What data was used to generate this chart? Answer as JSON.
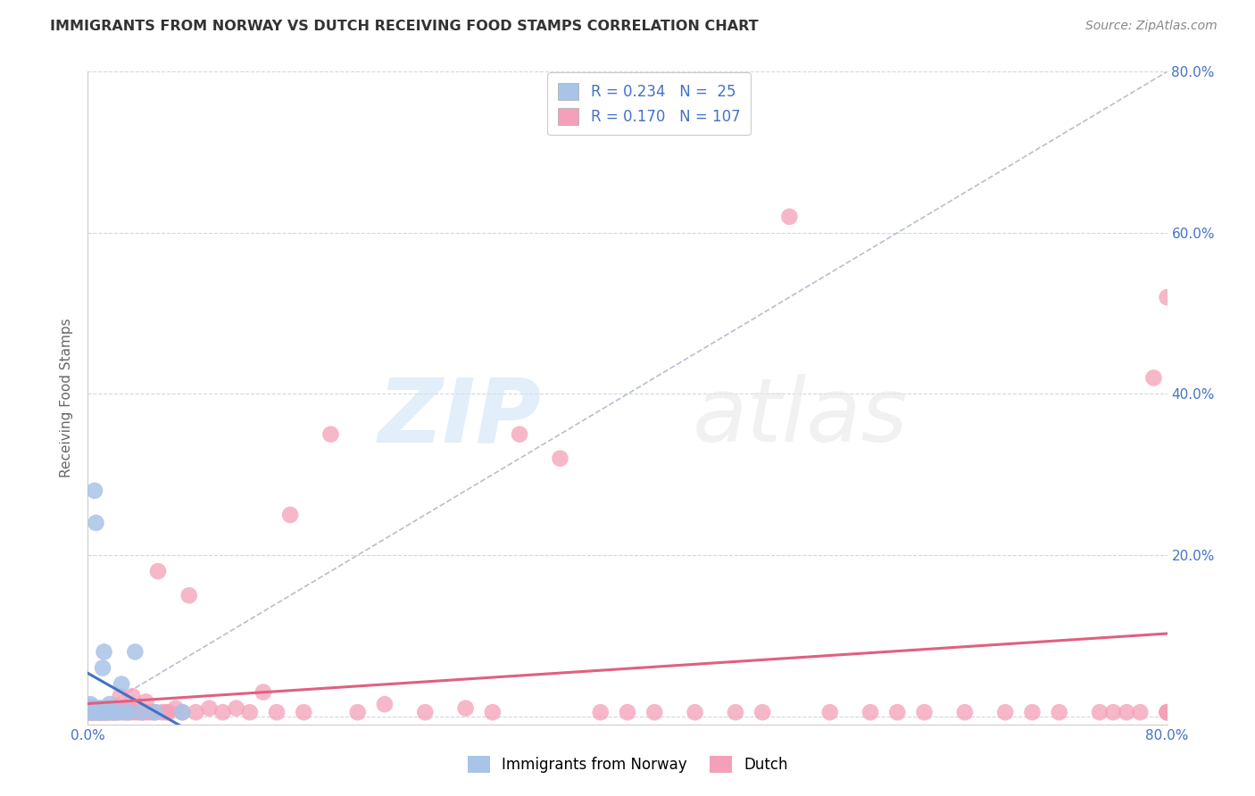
{
  "title": "IMMIGRANTS FROM NORWAY VS DUTCH RECEIVING FOOD STAMPS CORRELATION CHART",
  "source": "Source: ZipAtlas.com",
  "ylabel": "Receiving Food Stamps",
  "xlim": [
    0.0,
    0.8
  ],
  "ylim": [
    -0.01,
    0.8
  ],
  "xticks": [
    0.0,
    0.2,
    0.4,
    0.6,
    0.8
  ],
  "yticks": [
    0.0,
    0.2,
    0.4,
    0.6,
    0.8
  ],
  "xticklabels": [
    "0.0%",
    "",
    "",
    "",
    "80.0%"
  ],
  "yticklabels_right": [
    "20.0%",
    "40.0%",
    "60.0%",
    "80.0%"
  ],
  "norway_R": 0.234,
  "norway_N": 25,
  "dutch_R": 0.17,
  "dutch_N": 107,
  "norway_color": "#a8c4e8",
  "dutch_color": "#f4a0b8",
  "norway_trend_color": "#4472c4",
  "dutch_trend_color": "#e06080",
  "diagonal_color": "#b0b8c8",
  "background_color": "#ffffff",
  "grid_color": "#d0d8e0",
  "norway_x": [
    0.001,
    0.002,
    0.003,
    0.004,
    0.005,
    0.006,
    0.007,
    0.008,
    0.009,
    0.01,
    0.011,
    0.012,
    0.013,
    0.015,
    0.016,
    0.018,
    0.02,
    0.022,
    0.025,
    0.028,
    0.03,
    0.035,
    0.04,
    0.05,
    0.07
  ],
  "norway_y": [
    0.005,
    0.015,
    0.005,
    0.005,
    0.28,
    0.24,
    0.005,
    0.01,
    0.005,
    0.005,
    0.06,
    0.08,
    0.005,
    0.005,
    0.015,
    0.005,
    0.005,
    0.005,
    0.04,
    0.005,
    0.005,
    0.08,
    0.005,
    0.005,
    0.005
  ],
  "dutch_x": [
    0.0,
    0.0,
    0.001,
    0.001,
    0.002,
    0.002,
    0.003,
    0.003,
    0.004,
    0.004,
    0.005,
    0.005,
    0.006,
    0.006,
    0.007,
    0.007,
    0.008,
    0.008,
    0.009,
    0.009,
    0.01,
    0.01,
    0.011,
    0.011,
    0.012,
    0.012,
    0.013,
    0.013,
    0.014,
    0.015,
    0.015,
    0.016,
    0.017,
    0.018,
    0.018,
    0.019,
    0.02,
    0.02,
    0.021,
    0.022,
    0.023,
    0.024,
    0.025,
    0.026,
    0.027,
    0.028,
    0.03,
    0.03,
    0.032,
    0.033,
    0.035,
    0.036,
    0.038,
    0.04,
    0.042,
    0.043,
    0.045,
    0.048,
    0.05,
    0.052,
    0.055,
    0.058,
    0.06,
    0.065,
    0.07,
    0.075,
    0.08,
    0.09,
    0.1,
    0.11,
    0.12,
    0.13,
    0.14,
    0.15,
    0.16,
    0.18,
    0.2,
    0.22,
    0.25,
    0.28,
    0.3,
    0.32,
    0.35,
    0.38,
    0.4,
    0.42,
    0.45,
    0.48,
    0.5,
    0.52,
    0.55,
    0.58,
    0.6,
    0.62,
    0.65,
    0.68,
    0.7,
    0.72,
    0.75,
    0.76,
    0.77,
    0.78,
    0.79,
    0.8,
    0.8,
    0.8,
    0.8
  ],
  "dutch_y": [
    0.005,
    0.01,
    0.005,
    0.008,
    0.005,
    0.01,
    0.005,
    0.012,
    0.005,
    0.008,
    0.005,
    0.01,
    0.005,
    0.008,
    0.005,
    0.01,
    0.005,
    0.008,
    0.005,
    0.01,
    0.005,
    0.008,
    0.005,
    0.01,
    0.005,
    0.008,
    0.005,
    0.01,
    0.005,
    0.005,
    0.008,
    0.005,
    0.01,
    0.005,
    0.008,
    0.005,
    0.005,
    0.01,
    0.005,
    0.008,
    0.005,
    0.025,
    0.005,
    0.008,
    0.005,
    0.01,
    0.005,
    0.008,
    0.005,
    0.025,
    0.005,
    0.008,
    0.005,
    0.005,
    0.005,
    0.018,
    0.005,
    0.005,
    0.005,
    0.18,
    0.005,
    0.005,
    0.005,
    0.01,
    0.005,
    0.15,
    0.005,
    0.01,
    0.005,
    0.01,
    0.005,
    0.03,
    0.005,
    0.25,
    0.005,
    0.35,
    0.005,
    0.015,
    0.005,
    0.01,
    0.005,
    0.35,
    0.32,
    0.005,
    0.005,
    0.005,
    0.005,
    0.005,
    0.005,
    0.62,
    0.005,
    0.005,
    0.005,
    0.005,
    0.005,
    0.005,
    0.005,
    0.005,
    0.005,
    0.005,
    0.005,
    0.005,
    0.42,
    0.005,
    0.005,
    0.52,
    0.005
  ]
}
